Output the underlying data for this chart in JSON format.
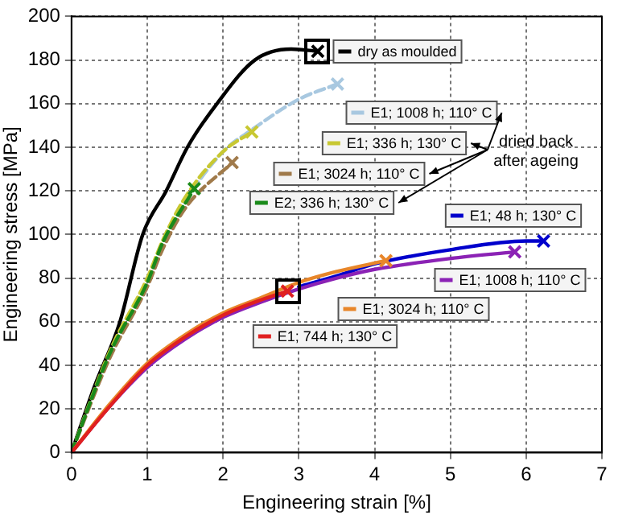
{
  "chart_data": {
    "type": "line",
    "xlabel": "Engineering strain [%]",
    "ylabel": "Engineering stress [MPa]",
    "xlim": [
      0,
      7
    ],
    "ylim": [
      0,
      200
    ],
    "xticks": [
      0,
      1,
      2,
      3,
      4,
      5,
      6,
      7
    ],
    "yticks": [
      0,
      20,
      40,
      60,
      80,
      100,
      120,
      140,
      160,
      180,
      200
    ],
    "grid": true,
    "legend": "right",
    "annotations": [
      "dried back\nafter ageing"
    ],
    "series": [
      {
        "name": "dry as moulded",
        "color": "#000000",
        "line_style": "solid",
        "x": [
          0,
          0.3,
          0.64,
          0.94,
          1.25,
          1.53,
          1.92,
          2.42,
          2.9,
          3.25
        ],
        "values": [
          0,
          30,
          60,
          100,
          120,
          140,
          160,
          180,
          185,
          184
        ]
      },
      {
        "name": "E1; 1008 h; 110° C",
        "color": "#a8c8e0",
        "line_style": "dashed",
        "x": [
          0,
          0.5,
          1,
          1.2,
          1.5,
          2,
          2.38,
          3,
          3.51
        ],
        "values": [
          0,
          45,
          78,
          95,
          115,
          138,
          148,
          162,
          169
        ]
      },
      {
        "name": "E1; 336 h; 130° C",
        "color": "#c8c832",
        "line_style": "dashed",
        "x": [
          0,
          0.5,
          1,
          1.2,
          1.5,
          2,
          2.38
        ],
        "values": [
          0,
          46,
          80,
          97,
          117,
          138,
          147
        ]
      },
      {
        "name": "E1; 3024 h; 110° C",
        "color": "#a07a4a",
        "line_style": "dashed",
        "x": [
          0,
          0.5,
          1,
          1.2,
          1.5,
          2.12
        ],
        "values": [
          0,
          43,
          76,
          93,
          112,
          133
        ]
      },
      {
        "name": "E2; 336 h; 130° C",
        "color": "#1a8a1a",
        "line_style": "dashed",
        "x": [
          0,
          0.5,
          1,
          1.2,
          1.62
        ],
        "values": [
          0,
          45,
          78,
          96,
          121
        ]
      },
      {
        "name": "E1; 48 h; 130° C",
        "color": "#0000cc",
        "line_style": "solid",
        "x": [
          3,
          3.5,
          4,
          5,
          6,
          6.23
        ],
        "values": [
          76,
          81,
          86.5,
          93,
          97,
          97
        ]
      },
      {
        "name": "E1; 1008 h; 110° C",
        "color": "#8b22b5",
        "line_style": "solid",
        "x": [
          0,
          0.5,
          1,
          1.5,
          2,
          2.5,
          3,
          3.5,
          4,
          5,
          5.85
        ],
        "values": [
          0,
          21,
          39,
          52,
          62,
          69,
          75,
          80,
          84,
          89,
          92
        ]
      },
      {
        "name": "E1; 3024 h; 110° C",
        "color": "#e8862a",
        "line_style": "solid",
        "x": [
          0,
          0.5,
          1,
          1.5,
          2,
          2.5,
          3,
          3.5,
          4.15
        ],
        "values": [
          0,
          22,
          41,
          54,
          64,
          71,
          78,
          83,
          88
        ]
      },
      {
        "name": "E1; 744 h; 130° C",
        "color": "#e02020",
        "line_style": "solid",
        "x": [
          0,
          0.5,
          1,
          1.5,
          2,
          2.5,
          2.85
        ],
        "values": [
          0,
          21,
          40,
          53,
          63,
          70,
          74
        ]
      }
    ]
  }
}
